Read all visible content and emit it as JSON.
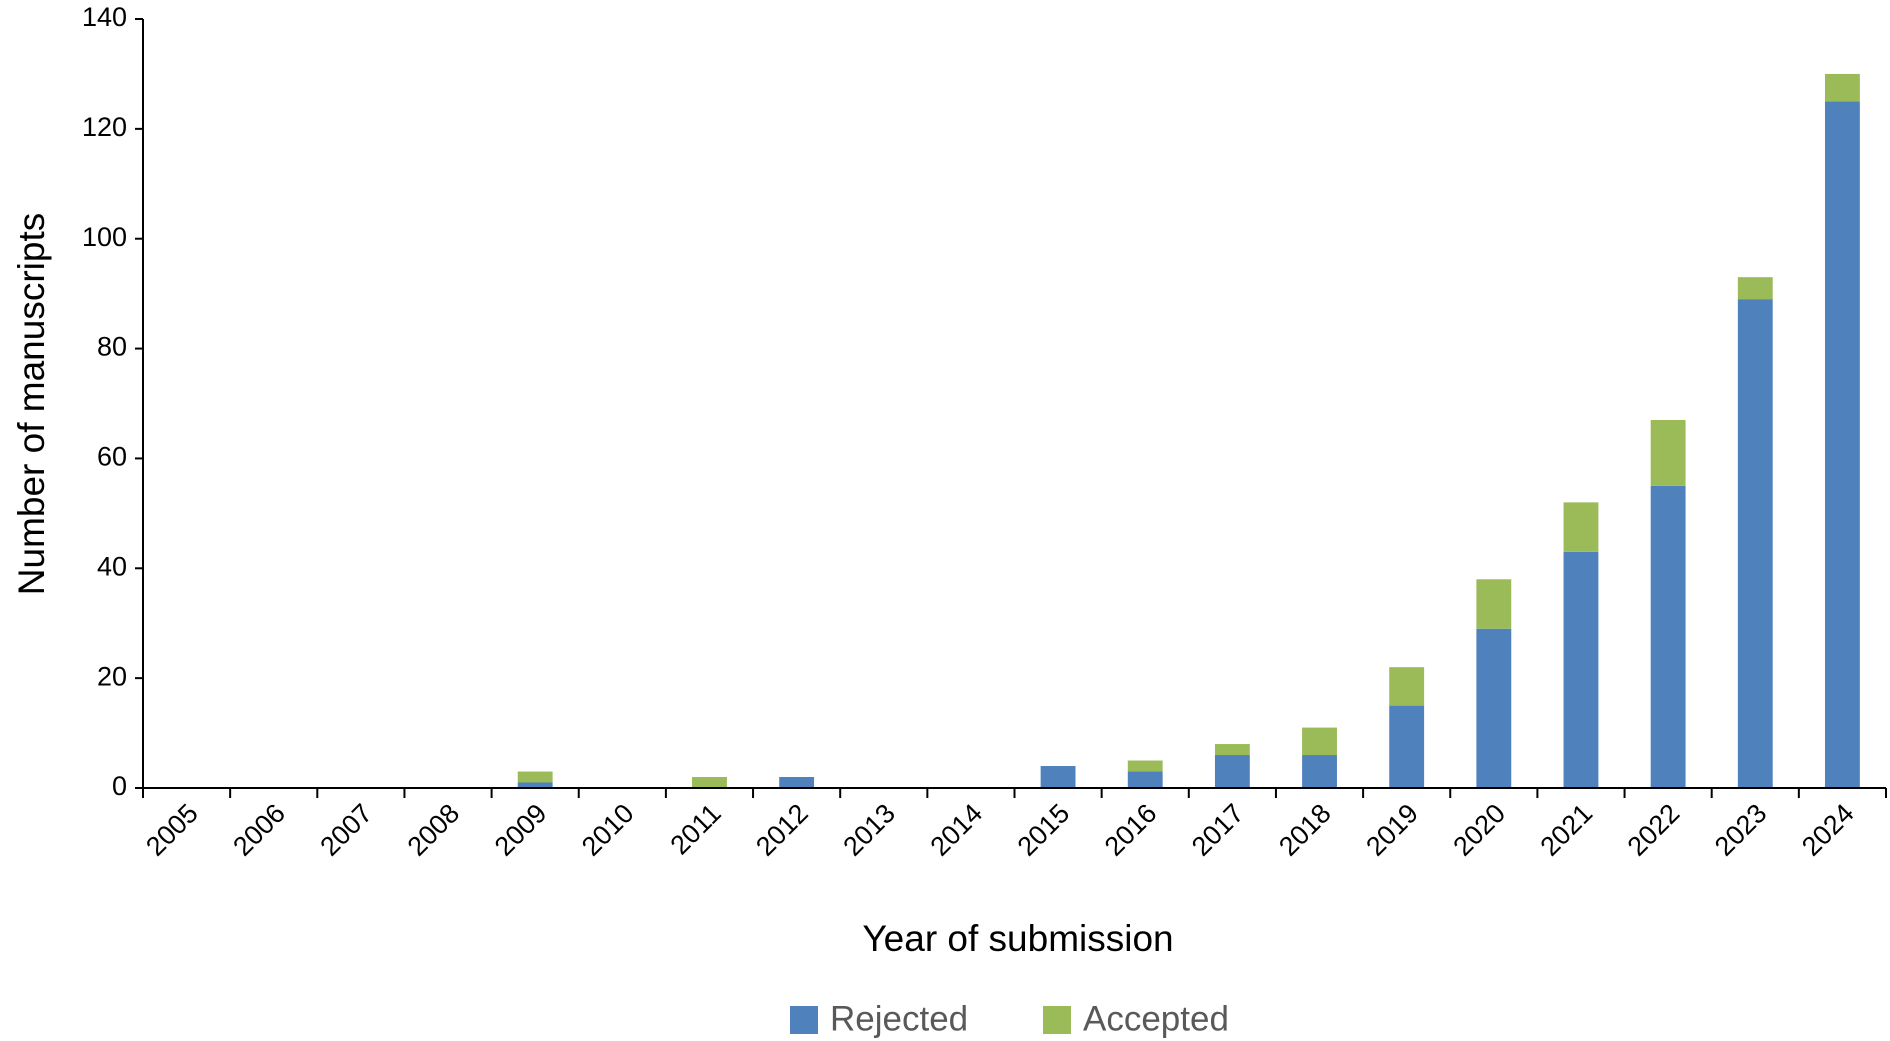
{
  "chart_data": {
    "type": "stacked_bar",
    "x_label": "Year of submission",
    "y_label": "Number of manuscripts",
    "categories": [
      "2005",
      "2006",
      "2007",
      "2008",
      "2009",
      "2010",
      "2011",
      "2012",
      "2013",
      "2014",
      "2015",
      "2016",
      "2017",
      "2018",
      "2019",
      "2020",
      "2021",
      "2022",
      "2023",
      "2024"
    ],
    "series": [
      {
        "name": "Rejected",
        "color": "#4f81bd",
        "values": [
          0,
          0,
          0,
          0,
          1,
          0,
          0,
          2,
          0,
          0,
          4,
          3,
          6,
          6,
          15,
          29,
          43,
          55,
          89,
          125
        ]
      },
      {
        "name": "Accepted",
        "color": "#9bbb59",
        "values": [
          0,
          0,
          0,
          0,
          2,
          0,
          2,
          0,
          0,
          0,
          0,
          2,
          2,
          5,
          7,
          9,
          9,
          12,
          4,
          5
        ]
      }
    ],
    "ylim": [
      0,
      140
    ],
    "yticks": [
      0,
      20,
      40,
      60,
      80,
      100,
      120,
      140
    ],
    "legend": "bottom"
  }
}
